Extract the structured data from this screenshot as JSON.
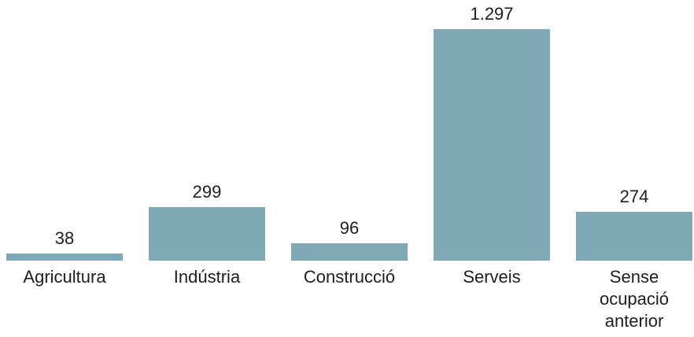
{
  "chart_data": {
    "type": "bar",
    "categories": [
      "Agricultura",
      "Indústria",
      "Construcció",
      "Serveis",
      "Sense ocupació anterior"
    ],
    "values": [
      38,
      299,
      96,
      1297,
      274
    ],
    "value_labels": [
      "38",
      "299",
      "96",
      "1.297",
      "274"
    ],
    "color": "#7fa8b6"
  }
}
